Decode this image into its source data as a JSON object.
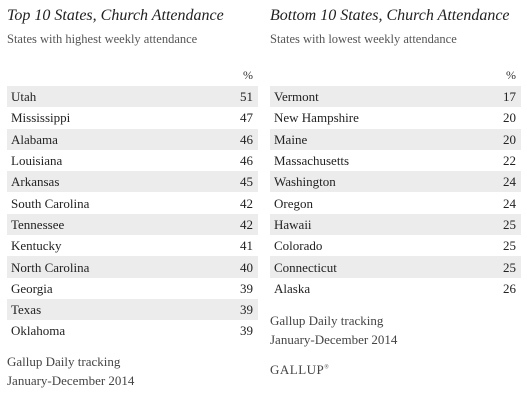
{
  "left": {
    "title": "Top 10 States, Church Attendance",
    "subtitle": "States with highest weekly attendance",
    "pct_header": "%",
    "rows": [
      {
        "state": "Utah",
        "value": "51"
      },
      {
        "state": "Mississippi",
        "value": "47"
      },
      {
        "state": "Alabama",
        "value": "46"
      },
      {
        "state": "Louisiana",
        "value": "46"
      },
      {
        "state": "Arkansas",
        "value": "45"
      },
      {
        "state": "South Carolina",
        "value": "42"
      },
      {
        "state": "Tennessee",
        "value": "42"
      },
      {
        "state": "Kentucky",
        "value": "41"
      },
      {
        "state": "North Carolina",
        "value": "40"
      },
      {
        "state": "Georgia",
        "value": "39"
      },
      {
        "state": "Texas",
        "value": "39"
      },
      {
        "state": "Oklahoma",
        "value": "39"
      }
    ],
    "note_line1": "Gallup Daily tracking",
    "note_line2": "January-December 2014",
    "logo": "GALLUP"
  },
  "right": {
    "title": "Bottom 10 States, Church Attendance",
    "subtitle": "States with lowest weekly attendance",
    "pct_header": "%",
    "rows": [
      {
        "state": "Vermont",
        "value": "17"
      },
      {
        "state": "New Hampshire",
        "value": "20"
      },
      {
        "state": "Maine",
        "value": "20"
      },
      {
        "state": "Massachusetts",
        "value": "22"
      },
      {
        "state": "Washington",
        "value": "24"
      },
      {
        "state": "Oregon",
        "value": "24"
      },
      {
        "state": "Hawaii",
        "value": "25"
      },
      {
        "state": "Colorado",
        "value": "25"
      },
      {
        "state": "Connecticut",
        "value": "25"
      },
      {
        "state": "Alaska",
        "value": "26"
      }
    ],
    "note_line1": "Gallup Daily tracking",
    "note_line2": "January-December 2014",
    "logo": "GALLUP"
  },
  "colors": {
    "row_shade": "#ececec",
    "text": "#222222"
  }
}
